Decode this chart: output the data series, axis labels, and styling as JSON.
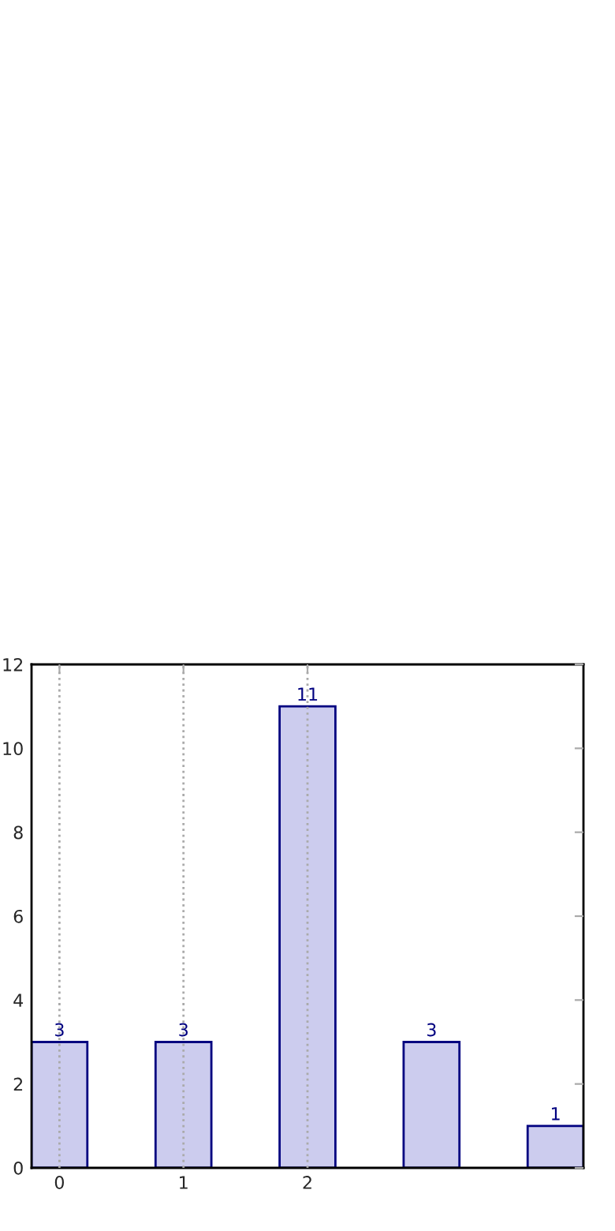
{
  "chart_data": {
    "type": "bar",
    "categories": [
      "0",
      "1",
      "2",
      null,
      null
    ],
    "values": [
      3,
      3,
      11,
      3,
      1
    ],
    "color": "#ccccee",
    "ylim": [
      0,
      12
    ],
    "yticks": [
      0,
      2,
      4,
      6,
      8,
      10,
      12
    ],
    "grid": "x",
    "data_labels": true
  }
}
